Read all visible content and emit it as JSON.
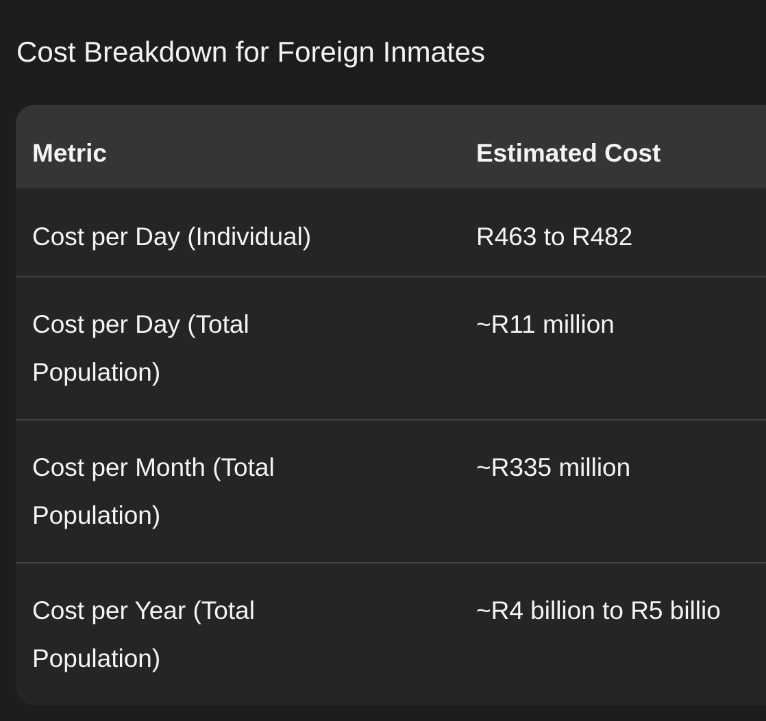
{
  "page": {
    "title": "Cost Breakdown for Foreign Inmates"
  },
  "table": {
    "columns": [
      "Metric",
      "Estimated Cost"
    ],
    "rows": [
      {
        "metric": "Cost per Day (Individual)",
        "cost": "R463 to R482"
      },
      {
        "metric": "Cost per Day (Total Population)",
        "cost": "~R11 million"
      },
      {
        "metric": "Cost per Month (Total Population)",
        "cost": "~R335 million"
      },
      {
        "metric": "Cost per Year (Total Population)",
        "cost": "~R4 billion to R5 billio"
      }
    ]
  }
}
